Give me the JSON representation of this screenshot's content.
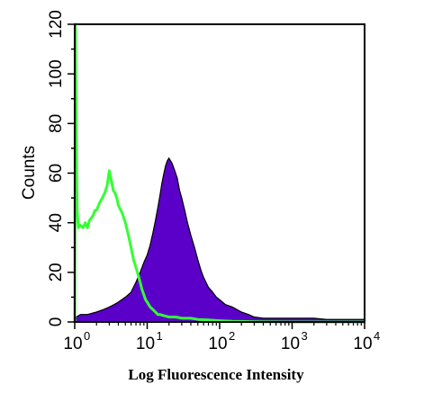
{
  "chart_data": {
    "type": "area",
    "title": "",
    "xlabel": "Log Fluorescence Intensity",
    "ylabel": "Counts",
    "xscale": "log",
    "xlim": [
      1,
      10000
    ],
    "ylim": [
      0,
      120
    ],
    "x_ticks": [
      {
        "value": 1,
        "base": "10",
        "exp": "0"
      },
      {
        "value": 10,
        "base": "10",
        "exp": "1"
      },
      {
        "value": 100,
        "base": "10",
        "exp": "2"
      },
      {
        "value": 1000,
        "base": "10",
        "exp": "3"
      },
      {
        "value": 10000,
        "base": "10",
        "exp": "4"
      }
    ],
    "y_ticks": [
      "0",
      "20",
      "40",
      "60",
      "80",
      "100",
      "120"
    ],
    "y_tick_values": [
      0,
      20,
      40,
      60,
      80,
      100,
      120
    ],
    "grid": false,
    "legend": "none",
    "series": [
      {
        "style": "filled",
        "color": "#5b00c8",
        "outline": "#000000",
        "points": [
          [
            1.0,
            0
          ],
          [
            1.05,
            2
          ],
          [
            1.2,
            3
          ],
          [
            1.5,
            3
          ],
          [
            2.0,
            4
          ],
          [
            2.5,
            5
          ],
          [
            3.0,
            6
          ],
          [
            3.5,
            7
          ],
          [
            4.0,
            8
          ],
          [
            5.0,
            10
          ],
          [
            6.0,
            12
          ],
          [
            7.0,
            16
          ],
          [
            8.0,
            20
          ],
          [
            9.0,
            24
          ],
          [
            10.0,
            27
          ],
          [
            11.0,
            31
          ],
          [
            12.0,
            36
          ],
          [
            13.0,
            41
          ],
          [
            14.0,
            46
          ],
          [
            15.0,
            51
          ],
          [
            16.0,
            56
          ],
          [
            17.0,
            60
          ],
          [
            18.0,
            63
          ],
          [
            19.0,
            65
          ],
          [
            20.0,
            66
          ],
          [
            22.0,
            64
          ],
          [
            24.0,
            61
          ],
          [
            26.0,
            58
          ],
          [
            28.0,
            53
          ],
          [
            30.0,
            50
          ],
          [
            33.0,
            45
          ],
          [
            36.0,
            40
          ],
          [
            40.0,
            35
          ],
          [
            45.0,
            30
          ],
          [
            50.0,
            25
          ],
          [
            55.0,
            21
          ],
          [
            60.0,
            18
          ],
          [
            70.0,
            14
          ],
          [
            80.0,
            12
          ],
          [
            90.0,
            10
          ],
          [
            100.0,
            9
          ],
          [
            120.0,
            7
          ],
          [
            150.0,
            6
          ],
          [
            200.0,
            4
          ],
          [
            250.0,
            3
          ],
          [
            300.0,
            2
          ],
          [
            400.0,
            1.5
          ],
          [
            500.0,
            1.5
          ],
          [
            700.0,
            1.5
          ],
          [
            1000.0,
            1.5
          ],
          [
            1500.0,
            1.5
          ],
          [
            2000.0,
            1.5
          ],
          [
            3000.0,
            1
          ],
          [
            5000.0,
            1
          ],
          [
            7000.0,
            1
          ],
          [
            10000.0,
            1
          ]
        ]
      },
      {
        "style": "line",
        "color": "#33ff33",
        "points": [
          [
            1.0,
            0
          ],
          [
            1.02,
            120
          ],
          [
            1.05,
            75
          ],
          [
            1.08,
            45
          ],
          [
            1.12,
            38
          ],
          [
            1.2,
            39
          ],
          [
            1.3,
            38
          ],
          [
            1.4,
            40
          ],
          [
            1.5,
            38
          ],
          [
            1.6,
            41
          ],
          [
            1.7,
            42
          ],
          [
            1.8,
            43
          ],
          [
            1.9,
            45
          ],
          [
            2.0,
            45
          ],
          [
            2.2,
            48
          ],
          [
            2.4,
            50
          ],
          [
            2.6,
            52
          ],
          [
            2.8,
            55
          ],
          [
            3.0,
            61
          ],
          [
            3.2,
            57
          ],
          [
            3.4,
            53
          ],
          [
            3.6,
            52
          ],
          [
            3.8,
            50
          ],
          [
            4.0,
            47
          ],
          [
            4.5,
            44
          ],
          [
            5.0,
            40
          ],
          [
            5.5,
            35
          ],
          [
            6.0,
            30
          ],
          [
            6.5,
            25
          ],
          [
            7.0,
            22
          ],
          [
            7.5,
            19
          ],
          [
            8.0,
            16
          ],
          [
            8.5,
            13
          ],
          [
            9.0,
            11
          ],
          [
            9.5,
            9
          ],
          [
            10.0,
            8
          ],
          [
            11.0,
            6
          ],
          [
            12.0,
            5
          ],
          [
            13.0,
            4
          ],
          [
            14.0,
            3
          ],
          [
            15.0,
            3
          ],
          [
            17.0,
            2.5
          ],
          [
            20.0,
            2
          ],
          [
            25.0,
            2
          ],
          [
            30.0,
            1.5
          ],
          [
            40.0,
            1.5
          ],
          [
            50.0,
            1
          ],
          [
            70.0,
            0.8
          ],
          [
            100.0,
            0.5
          ],
          [
            150.0,
            0.3
          ],
          [
            200.0,
            0.2
          ],
          [
            300.0,
            0.1
          ],
          [
            1000.0,
            0
          ],
          [
            10000.0,
            0
          ]
        ]
      }
    ]
  }
}
